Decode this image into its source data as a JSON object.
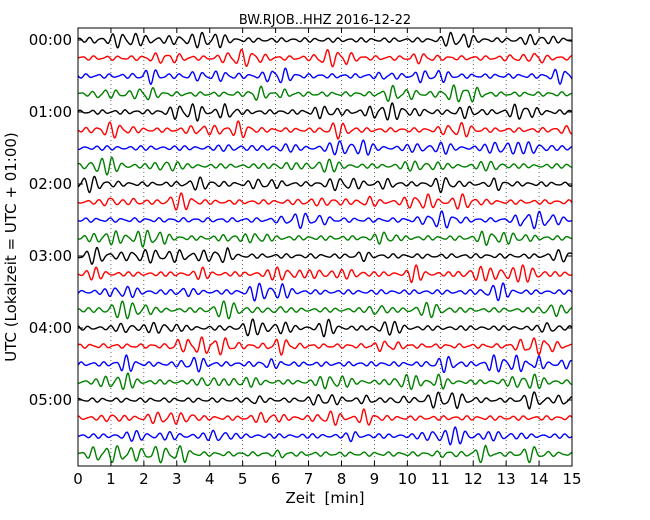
{
  "chart_data": {
    "type": "line",
    "title": "BW.RJOB..HHZ 2016-12-22",
    "xlabel": "Zeit  [min]",
    "ylabel": "UTC (Lokalzeit = UTC + 01:00)",
    "xlim": [
      0,
      15
    ],
    "x_ticks": [
      "0",
      "1",
      "2",
      "3",
      "4",
      "5",
      "6",
      "7",
      "8",
      "9",
      "10",
      "11",
      "12",
      "13",
      "14",
      "15"
    ],
    "y_ticks": [
      "00:00",
      "01:00",
      "02:00",
      "03:00",
      "04:00",
      "05:00"
    ],
    "trace_interval_minutes": 15,
    "trace_count": 24,
    "trace_colors": [
      "#000000",
      "#ff0000",
      "#0000ff",
      "#008000"
    ],
    "grid": true,
    "legend": "none"
  }
}
